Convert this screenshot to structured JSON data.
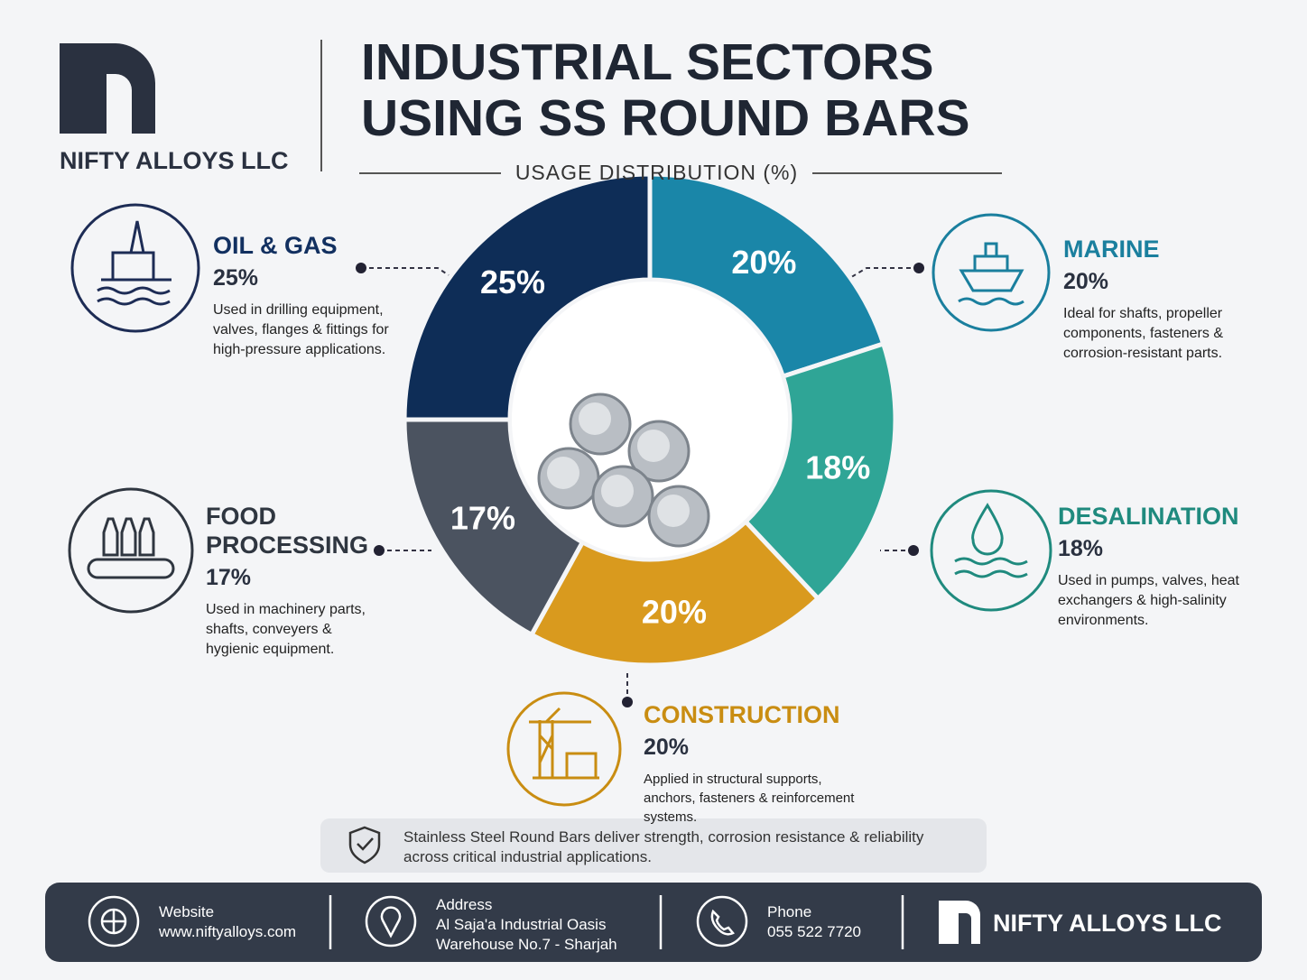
{
  "brand": {
    "name": "NIFTY ALLOYS LLC"
  },
  "chart_data": {
    "type": "donut",
    "title": "INDUSTRIAL SECTORS USING SS ROUND BARS",
    "subtitle": "USAGE DISTRIBUTION (%)",
    "categories": [
      "MARINE",
      "DESALINATION",
      "CONSTRUCTION",
      "FOOD PROCESSING",
      "OIL & GAS"
    ],
    "values": [
      20,
      18,
      20,
      17,
      25
    ],
    "value_labels": [
      "20%",
      "18%",
      "20%",
      "17%",
      "25%"
    ],
    "colors": [
      "#1a86a8",
      "#2fa596",
      "#d99a1e",
      "#4b5360",
      "#0e2d57"
    ],
    "descriptions": [
      "Ideal for shafts, propeller components, fasteners & corrosion-resistant parts.",
      "Used in pumps, valves, heat exchangers & high-salinity environments.",
      "Applied in structural supports, anchors, fasteners & reinforcement systems.",
      "Used in machinery parts, shafts, conveyers & hygienic equipment.",
      "Used in drilling equipment, valves, flanges & fittings for high-pressure applications."
    ]
  },
  "tagline": "Stainless Steel Round Bars deliver strength, corrosion resistance & reliability across critical industrial applications.",
  "footer": {
    "website": {
      "label": "Website",
      "value": "www.niftyalloys.com"
    },
    "address": {
      "label": "Address",
      "lines": [
        "Al Saja'a Industrial Oasis",
        "Warehouse No.7 - Sharjah"
      ]
    },
    "phone": {
      "label": "Phone",
      "value": "055 522 7720"
    },
    "brand": "NIFTY ALLOYS LLC"
  }
}
